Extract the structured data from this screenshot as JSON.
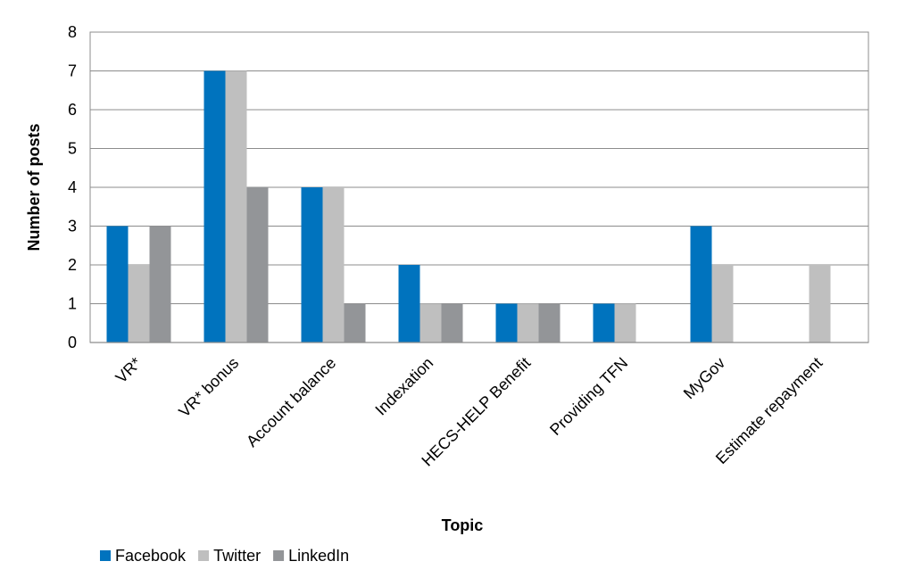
{
  "chart_data": {
    "type": "bar",
    "title": "",
    "xlabel": "Topic",
    "ylabel": "Number of posts",
    "ylim": [
      0,
      8
    ],
    "yticks": [
      0,
      1,
      2,
      3,
      4,
      5,
      6,
      7,
      8
    ],
    "grid": true,
    "legend_position": "bottom-left",
    "categories": [
      "VR*",
      "VR* bonus",
      "Account balance",
      "Indexation",
      "HECS-HELP Benefit",
      "Providing TFN",
      "MyGov",
      "Estimate repayment"
    ],
    "series": [
      {
        "name": "Facebook",
        "color": "#0073BE",
        "values": [
          3,
          7,
          4,
          2,
          1,
          1,
          3,
          0
        ]
      },
      {
        "name": "Twitter",
        "color": "#BFBFBF",
        "values": [
          2,
          7,
          4,
          1,
          1,
          1,
          2,
          2
        ]
      },
      {
        "name": "LinkedIn",
        "color": "#939598",
        "values": [
          3,
          4,
          1,
          1,
          1,
          0,
          0,
          0
        ]
      }
    ]
  }
}
